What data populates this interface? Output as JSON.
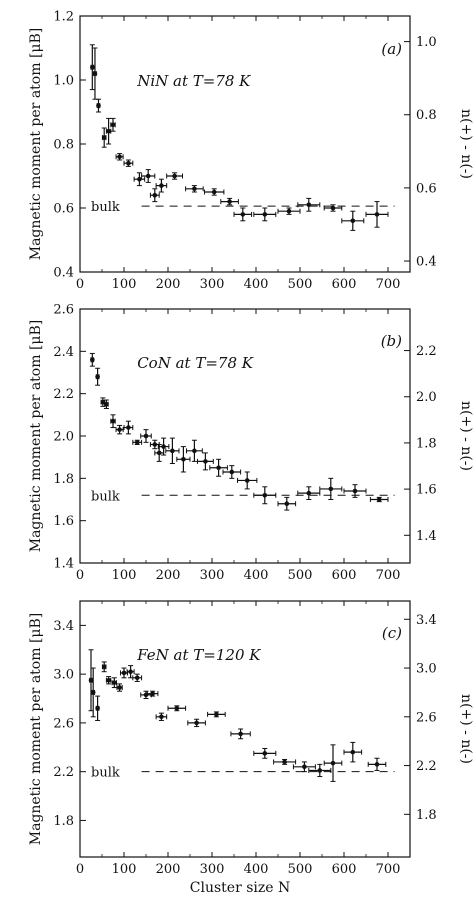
{
  "shared": {
    "xlabel": "Cluster size N",
    "xlim": [
      0,
      750
    ],
    "xticks": [
      0,
      100,
      200,
      300,
      400,
      500,
      600,
      700
    ],
    "ylabel": "Magnetic moment per atom [μB]",
    "y2label": "n(+) - n(-)"
  },
  "chart_data": [
    {
      "type": "scatter",
      "panel": "(a)",
      "title": "NiN at T=78 K",
      "ylim": [
        0.4,
        1.2
      ],
      "yticks": [
        "0.4",
        "0.6",
        "0.8",
        "1.0",
        "1.2"
      ],
      "y2lim": [
        0.37,
        1.07
      ],
      "y2ticks": [
        "0.4",
        "0.6",
        "0.8",
        "1.0"
      ],
      "bulk_label": "bulk",
      "bulk_value": 0.606,
      "points": [
        {
          "x": 28,
          "y": 1.04,
          "xerr": 3,
          "yerr": 0.07
        },
        {
          "x": 34,
          "y": 1.02,
          "xerr": 3,
          "yerr": 0.08
        },
        {
          "x": 42,
          "y": 0.92,
          "xerr": 3,
          "yerr": 0.02
        },
        {
          "x": 55,
          "y": 0.82,
          "xerr": 4,
          "yerr": 0.03
        },
        {
          "x": 65,
          "y": 0.84,
          "xerr": 5,
          "yerr": 0.04
        },
        {
          "x": 75,
          "y": 0.86,
          "xerr": 5,
          "yerr": 0.02
        },
        {
          "x": 90,
          "y": 0.76,
          "xerr": 8,
          "yerr": 0.01
        },
        {
          "x": 110,
          "y": 0.74,
          "xerr": 10,
          "yerr": 0.01
        },
        {
          "x": 135,
          "y": 0.69,
          "xerr": 12,
          "yerr": 0.02
        },
        {
          "x": 155,
          "y": 0.7,
          "xerr": 15,
          "yerr": 0.02
        },
        {
          "x": 170,
          "y": 0.64,
          "xerr": 10,
          "yerr": 0.02
        },
        {
          "x": 185,
          "y": 0.67,
          "xerr": 12,
          "yerr": 0.02
        },
        {
          "x": 215,
          "y": 0.7,
          "xerr": 18,
          "yerr": 0.01
        },
        {
          "x": 260,
          "y": 0.66,
          "xerr": 20,
          "yerr": 0.01
        },
        {
          "x": 305,
          "y": 0.65,
          "xerr": 22,
          "yerr": 0.01
        },
        {
          "x": 340,
          "y": 0.62,
          "xerr": 20,
          "yerr": 0.01
        },
        {
          "x": 370,
          "y": 0.58,
          "xerr": 20,
          "yerr": 0.02
        },
        {
          "x": 420,
          "y": 0.58,
          "xerr": 25,
          "yerr": 0.02
        },
        {
          "x": 475,
          "y": 0.59,
          "xerr": 25,
          "yerr": 0.01
        },
        {
          "x": 520,
          "y": 0.61,
          "xerr": 25,
          "yerr": 0.02
        },
        {
          "x": 575,
          "y": 0.6,
          "xerr": 20,
          "yerr": 0.01
        },
        {
          "x": 620,
          "y": 0.56,
          "xerr": 25,
          "yerr": 0.03
        },
        {
          "x": 675,
          "y": 0.58,
          "xerr": 25,
          "yerr": 0.04
        }
      ]
    },
    {
      "type": "scatter",
      "panel": "(b)",
      "title": "CoN at T=78 K",
      "ylim": [
        1.4,
        2.6
      ],
      "yticks": [
        "1.4",
        "1.6",
        "1.8",
        "2.0",
        "2.2",
        "2.4",
        "2.6"
      ],
      "y2lim": [
        1.28,
        2.38
      ],
      "y2ticks": [
        "1.4",
        "1.6",
        "1.8",
        "2.0",
        "2.2"
      ],
      "bulk_label": "bulk",
      "bulk_value": 1.72,
      "points": [
        {
          "x": 28,
          "y": 2.36,
          "xerr": 3,
          "yerr": 0.03
        },
        {
          "x": 40,
          "y": 2.28,
          "xerr": 3,
          "yerr": 0.04
        },
        {
          "x": 52,
          "y": 2.16,
          "xerr": 4,
          "yerr": 0.02
        },
        {
          "x": 60,
          "y": 2.15,
          "xerr": 4,
          "yerr": 0.02
        },
        {
          "x": 75,
          "y": 2.07,
          "xerr": 5,
          "yerr": 0.03
        },
        {
          "x": 90,
          "y": 2.03,
          "xerr": 8,
          "yerr": 0.02
        },
        {
          "x": 110,
          "y": 2.04,
          "xerr": 10,
          "yerr": 0.03
        },
        {
          "x": 130,
          "y": 1.97,
          "xerr": 10,
          "yerr": 0.01
        },
        {
          "x": 150,
          "y": 2.0,
          "xerr": 12,
          "yerr": 0.03
        },
        {
          "x": 170,
          "y": 1.96,
          "xerr": 10,
          "yerr": 0.02
        },
        {
          "x": 180,
          "y": 1.92,
          "xerr": 10,
          "yerr": 0.04
        },
        {
          "x": 190,
          "y": 1.95,
          "xerr": 12,
          "yerr": 0.04
        },
        {
          "x": 210,
          "y": 1.93,
          "xerr": 15,
          "yerr": 0.06
        },
        {
          "x": 235,
          "y": 1.89,
          "xerr": 15,
          "yerr": 0.06
        },
        {
          "x": 260,
          "y": 1.93,
          "xerr": 18,
          "yerr": 0.05
        },
        {
          "x": 285,
          "y": 1.88,
          "xerr": 18,
          "yerr": 0.04
        },
        {
          "x": 315,
          "y": 1.85,
          "xerr": 20,
          "yerr": 0.04
        },
        {
          "x": 345,
          "y": 1.83,
          "xerr": 20,
          "yerr": 0.03
        },
        {
          "x": 380,
          "y": 1.79,
          "xerr": 22,
          "yerr": 0.04
        },
        {
          "x": 420,
          "y": 1.72,
          "xerr": 25,
          "yerr": 0.04
        },
        {
          "x": 470,
          "y": 1.68,
          "xerr": 20,
          "yerr": 0.03
        },
        {
          "x": 520,
          "y": 1.73,
          "xerr": 25,
          "yerr": 0.03
        },
        {
          "x": 570,
          "y": 1.75,
          "xerr": 25,
          "yerr": 0.05
        },
        {
          "x": 625,
          "y": 1.74,
          "xerr": 25,
          "yerr": 0.03
        },
        {
          "x": 680,
          "y": 1.7,
          "xerr": 20,
          "yerr": 0.01
        }
      ]
    },
    {
      "type": "scatter",
      "panel": "(c)",
      "title": "FeN at T=120 K",
      "ylim": [
        1.5,
        3.6
      ],
      "yticks": [
        "1.8",
        "2.2",
        "2.6",
        "3.0",
        "3.4"
      ],
      "y2lim": [
        1.45,
        3.55
      ],
      "y2ticks": [
        "1.8",
        "2.2",
        "2.6",
        "3.0",
        "3.4"
      ],
      "bulk_label": "bulk",
      "bulk_value": 2.2,
      "points": [
        {
          "x": 25,
          "y": 2.95,
          "xerr": 3,
          "yerr": 0.25
        },
        {
          "x": 30,
          "y": 2.85,
          "xerr": 3,
          "yerr": 0.2
        },
        {
          "x": 40,
          "y": 2.72,
          "xerr": 3,
          "yerr": 0.1
        },
        {
          "x": 55,
          "y": 3.06,
          "xerr": 4,
          "yerr": 0.04
        },
        {
          "x": 65,
          "y": 2.95,
          "xerr": 5,
          "yerr": 0.03
        },
        {
          "x": 78,
          "y": 2.93,
          "xerr": 5,
          "yerr": 0.04
        },
        {
          "x": 90,
          "y": 2.89,
          "xerr": 6,
          "yerr": 0.03
        },
        {
          "x": 100,
          "y": 3.01,
          "xerr": 8,
          "yerr": 0.04
        },
        {
          "x": 115,
          "y": 3.02,
          "xerr": 8,
          "yerr": 0.05
        },
        {
          "x": 130,
          "y": 2.97,
          "xerr": 10,
          "yerr": 0.03
        },
        {
          "x": 150,
          "y": 2.83,
          "xerr": 12,
          "yerr": 0.03
        },
        {
          "x": 165,
          "y": 2.84,
          "xerr": 12,
          "yerr": 0.02
        },
        {
          "x": 185,
          "y": 2.65,
          "xerr": 12,
          "yerr": 0.03
        },
        {
          "x": 220,
          "y": 2.72,
          "xerr": 20,
          "yerr": 0.02
        },
        {
          "x": 265,
          "y": 2.6,
          "xerr": 20,
          "yerr": 0.03
        },
        {
          "x": 310,
          "y": 2.67,
          "xerr": 20,
          "yerr": 0.02
        },
        {
          "x": 365,
          "y": 2.51,
          "xerr": 22,
          "yerr": 0.04
        },
        {
          "x": 420,
          "y": 2.35,
          "xerr": 25,
          "yerr": 0.04
        },
        {
          "x": 465,
          "y": 2.28,
          "xerr": 25,
          "yerr": 0.02
        },
        {
          "x": 510,
          "y": 2.24,
          "xerr": 25,
          "yerr": 0.04
        },
        {
          "x": 545,
          "y": 2.21,
          "xerr": 25,
          "yerr": 0.05
        },
        {
          "x": 575,
          "y": 2.27,
          "xerr": 20,
          "yerr": 0.15
        },
        {
          "x": 620,
          "y": 2.36,
          "xerr": 20,
          "yerr": 0.08
        },
        {
          "x": 675,
          "y": 2.26,
          "xerr": 20,
          "yerr": 0.05
        }
      ]
    }
  ]
}
